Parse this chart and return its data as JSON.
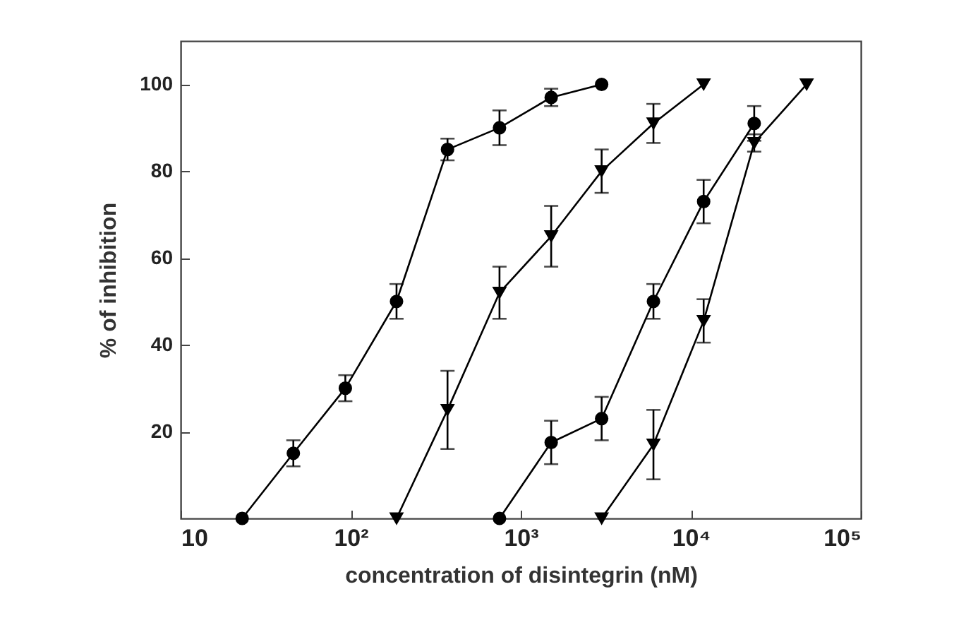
{
  "chart_data": {
    "type": "line",
    "xlabel": "concentration of disintegrin (nM)",
    "ylabel": "% of inhibition",
    "log": "x",
    "xlim": [
      10,
      100000
    ],
    "xticks": [
      10,
      {
        "value": 100,
        "label": "10²"
      },
      {
        "value": 1000,
        "label": "10³"
      },
      {
        "value": 10000,
        "label": "10⁴"
      },
      {
        "value": 100000,
        "label": "10⁵"
      }
    ],
    "ylim": [
      0,
      110
    ],
    "yticks": [
      20,
      40,
      60,
      80,
      100
    ],
    "grid": false,
    "line_style": "solid",
    "series": [
      {
        "color": "#000000",
        "marker": "circle",
        "x": [
          23,
          46,
          93,
          186,
          371,
          750,
          1510,
          2990
        ],
        "values": [
          0,
          15,
          30,
          50,
          85,
          90,
          97,
          100
        ],
        "errors": [
          null,
          3,
          3,
          4,
          2.5,
          4,
          2,
          null
        ]
      },
      {
        "color": "#000000",
        "marker": "triangle",
        "x": [
          186,
          371,
          750,
          1510,
          2990,
          6030,
          11900
        ],
        "values": [
          0,
          25,
          52,
          65,
          80,
          91,
          100
        ],
        "errors": [
          null,
          9,
          6,
          7,
          5,
          4.5,
          null
        ]
      },
      {
        "color": "#000000",
        "marker": "circle",
        "x": [
          750,
          1510,
          2990,
          6030,
          11900,
          23600
        ],
        "values": [
          0,
          17.5,
          23,
          50,
          73,
          91
        ],
        "errors": [
          null,
          5,
          5,
          4,
          5,
          4
        ]
      },
      {
        "color": "#000000",
        "marker": "triangle",
        "x": [
          2990,
          6030,
          11900,
          23600,
          48000
        ],
        "values": [
          0,
          17,
          45.5,
          86.5,
          100
        ],
        "errors": [
          null,
          8,
          5,
          2,
          null
        ]
      }
    ]
  }
}
